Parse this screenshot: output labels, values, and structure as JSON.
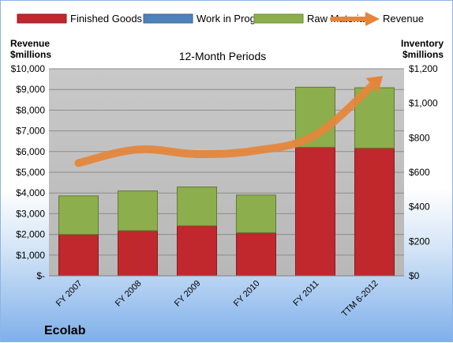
{
  "chart_data": {
    "type": "bar",
    "stacked": true,
    "title": "12-Month Periods",
    "company": "Ecolab",
    "categories": [
      "FY 2007",
      "FY 2008",
      "FY 2009",
      "FY 2010",
      "FY 2011",
      "TTM 6-2012"
    ],
    "left_axis": {
      "label_line1": "Revenue",
      "label_line2": "$millions",
      "ylim": [
        0,
        10000
      ],
      "ticks": [
        "$-",
        "$1,000",
        "$2,000",
        "$3,000",
        "$4,000",
        "$5,000",
        "$6,000",
        "$7,000",
        "$8,000",
        "$9,000",
        "$10,000"
      ]
    },
    "right_axis": {
      "label_line1": "Inventory",
      "label_line2": "$millions",
      "ylim": [
        0,
        1200
      ],
      "ticks": [
        "$0",
        "$200",
        "$400",
        "$600",
        "$800",
        "$1,000",
        "$1,200"
      ]
    },
    "series": [
      {
        "name": "Finished Goods",
        "axis": "right",
        "color": "#c0282d",
        "values": [
          240,
          262,
          290,
          250,
          745,
          740
        ]
      },
      {
        "name": "Work in Progress",
        "axis": "right",
        "color": "#4f81bd",
        "values": [
          0,
          0,
          0,
          0,
          0,
          0
        ]
      },
      {
        "name": "Raw Materials",
        "axis": "right",
        "color": "#8cae4c",
        "values": [
          223,
          230,
          225,
          218,
          348,
          350
        ]
      },
      {
        "name": "Revenue",
        "axis": "left",
        "type": "line",
        "color": "#e5853a",
        "values": [
          5450,
          6100,
          5880,
          6050,
          6800,
          9300
        ]
      }
    ],
    "grid": true,
    "legend": "top"
  }
}
